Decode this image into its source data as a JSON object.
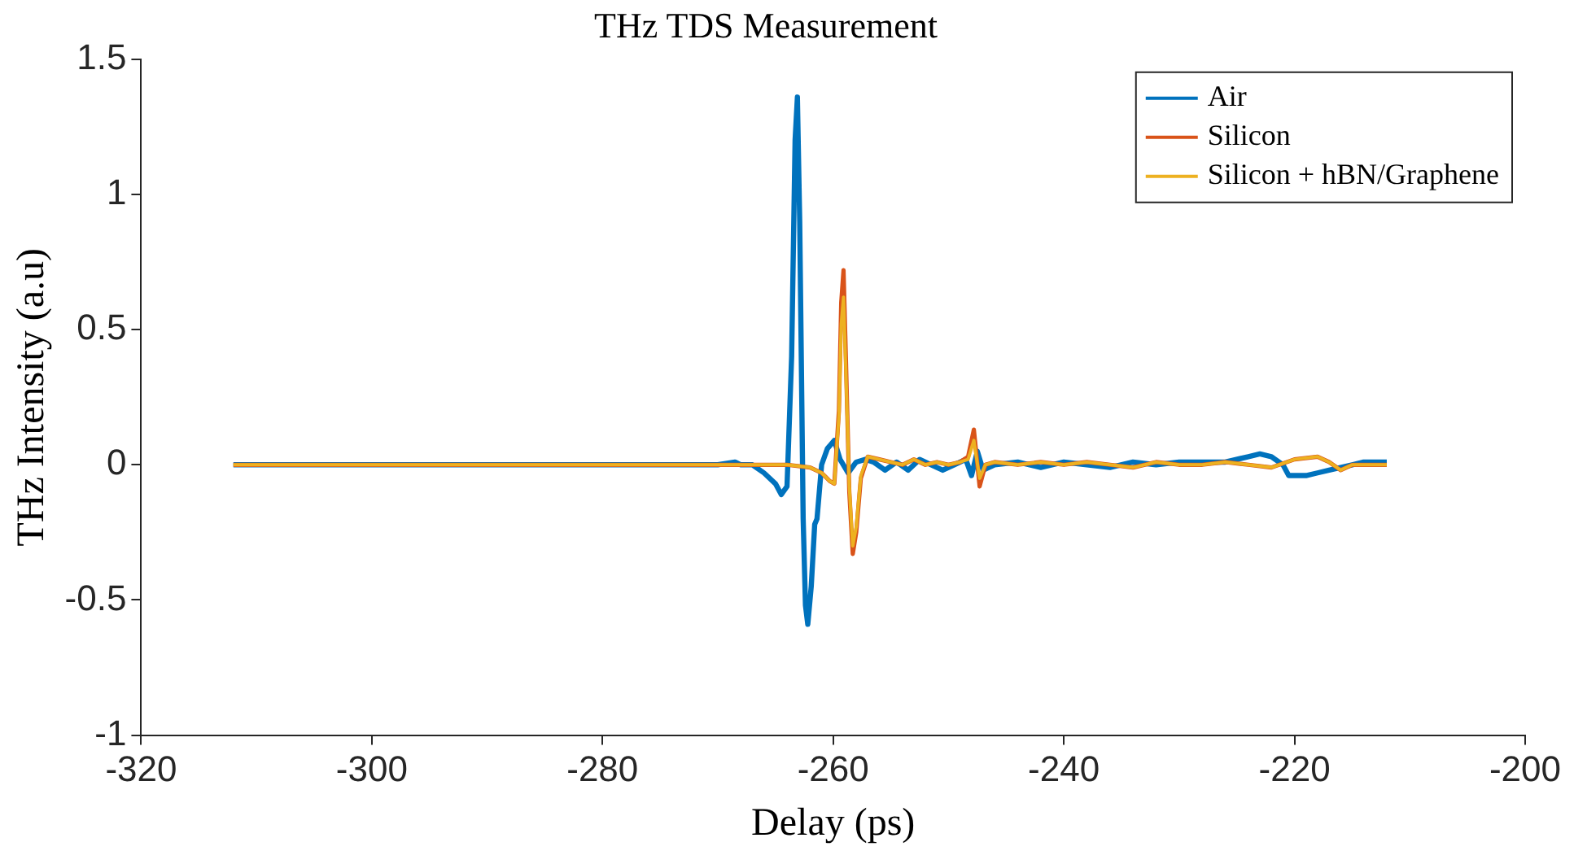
{
  "chart_data": {
    "type": "line",
    "title": "THz TDS Measurement",
    "xlabel": "Delay (ps)",
    "ylabel": "THz Intensity (a.u)",
    "xlim": [
      -320,
      -200
    ],
    "ylim": [
      -1,
      1.5
    ],
    "xticks": [
      -320,
      -300,
      -280,
      -260,
      -240,
      -220,
      -200
    ],
    "yticks": [
      -1,
      -0.5,
      0,
      0.5,
      1,
      1.5
    ],
    "grid": false,
    "legend": "top right",
    "marker": "none",
    "line_style": "solid",
    "series": [
      {
        "name": "Air",
        "color": "#0072bd",
        "x": [
          -312,
          -290,
          -270,
          -268.5,
          -268,
          -267,
          -266,
          -265,
          -264.5,
          -264,
          -263.6,
          -263.3,
          -263.1,
          -262.9,
          -262.6,
          -262.4,
          -262.2,
          -261.9,
          -261.6,
          -261.4,
          -261,
          -260.5,
          -259.9,
          -259.4,
          -258.7,
          -258,
          -257.2,
          -256.5,
          -255.5,
          -254.5,
          -253.5,
          -252.5,
          -251.5,
          -250.5,
          -249.5,
          -248.5,
          -248,
          -247.5,
          -247,
          -246,
          -244,
          -242,
          -240,
          -238,
          -236,
          -234,
          -232,
          -230,
          -228,
          -226,
          -224,
          -223,
          -222,
          -221,
          -220.5,
          -219,
          -218,
          -217,
          -216,
          -215,
          -214,
          -212
        ],
        "values": [
          0,
          0,
          0,
          0.01,
          0,
          0,
          -0.03,
          -0.07,
          -0.11,
          -0.08,
          0.4,
          1.2,
          1.36,
          0.9,
          -0.2,
          -0.52,
          -0.59,
          -0.45,
          -0.22,
          -0.2,
          0,
          0.06,
          0.09,
          0.02,
          -0.03,
          0.01,
          0.02,
          0.01,
          -0.02,
          0.01,
          -0.02,
          0.02,
          0,
          -0.02,
          0,
          0.02,
          -0.04,
          0.05,
          -0.02,
          0,
          0.01,
          -0.01,
          0.01,
          0,
          -0.01,
          0.01,
          0,
          0.01,
          0.01,
          0.01,
          0.03,
          0.04,
          0.03,
          0,
          -0.04,
          -0.04,
          -0.03,
          -0.02,
          -0.01,
          0,
          0.01,
          0.01
        ]
      },
      {
        "name": "Silicon",
        "color": "#d95319",
        "x": [
          -312,
          -290,
          -270,
          -264,
          -262,
          -261,
          -260.3,
          -259.9,
          -259.5,
          -259.3,
          -259.1,
          -258.9,
          -258.6,
          -258.3,
          -258,
          -257.6,
          -257,
          -256,
          -255,
          -254,
          -253,
          -252,
          -251,
          -250,
          -249,
          -248.3,
          -247.8,
          -247.3,
          -246.8,
          -246,
          -244,
          -242,
          -240,
          -238,
          -236,
          -234,
          -232,
          -230,
          -228,
          -226,
          -224,
          -222,
          -220,
          -218,
          -217,
          -216,
          -215,
          -214,
          -212
        ],
        "values": [
          0,
          0,
          0,
          0,
          -0.01,
          -0.03,
          -0.06,
          -0.07,
          0.2,
          0.6,
          0.72,
          0.4,
          -0.1,
          -0.33,
          -0.25,
          -0.05,
          0.03,
          0.02,
          0.01,
          0,
          0.02,
          0,
          0.01,
          0,
          0.01,
          0.03,
          0.13,
          -0.08,
          0,
          0.01,
          0,
          0.01,
          0,
          0.01,
          0,
          -0.01,
          0.01,
          0,
          0,
          0.01,
          0,
          -0.01,
          0.02,
          0.03,
          0.01,
          -0.02,
          0,
          0,
          0
        ]
      },
      {
        "name": "Silicon + hBN/Graphene",
        "color": "#edb120",
        "x": [
          -312,
          -290,
          -270,
          -264,
          -262,
          -261,
          -260.3,
          -259.9,
          -259.5,
          -259.3,
          -259.1,
          -258.9,
          -258.6,
          -258.3,
          -258,
          -257.6,
          -257,
          -256,
          -255,
          -254,
          -253,
          -252,
          -251,
          -250,
          -249,
          -248.3,
          -247.8,
          -247.3,
          -246.8,
          -246,
          -244,
          -242,
          -240,
          -238,
          -236,
          -234,
          -232,
          -230,
          -228,
          -226,
          -224,
          -222,
          -220,
          -218,
          -217,
          -216,
          -215,
          -214,
          -212
        ],
        "values": [
          0,
          0,
          0,
          0,
          -0.01,
          -0.03,
          -0.06,
          -0.07,
          0.18,
          0.52,
          0.62,
          0.35,
          -0.08,
          -0.3,
          -0.23,
          -0.04,
          0.03,
          0.02,
          0.01,
          0,
          0.02,
          0,
          0.01,
          0,
          0.01,
          0.02,
          0.09,
          -0.05,
          0,
          0.01,
          0,
          0.01,
          0,
          0.01,
          0,
          -0.01,
          0.01,
          0,
          0,
          0.01,
          0,
          -0.01,
          0.02,
          0.03,
          0.01,
          -0.02,
          0,
          0,
          0
        ]
      }
    ]
  }
}
